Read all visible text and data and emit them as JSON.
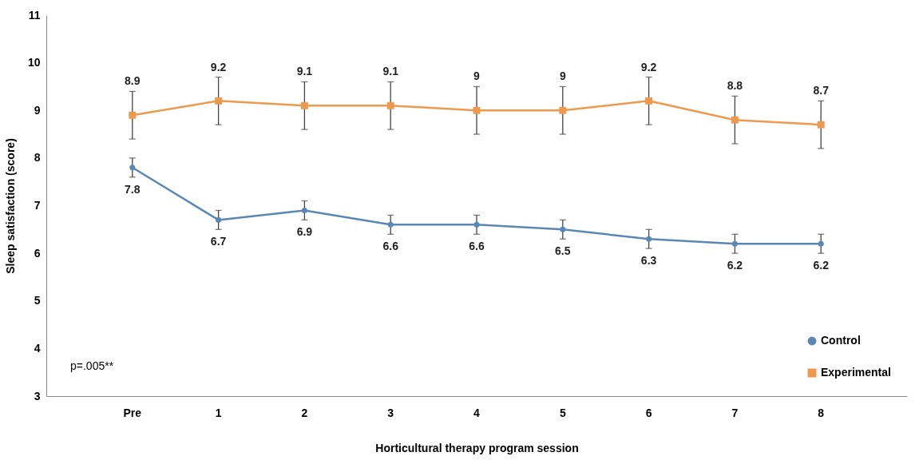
{
  "chart_data": {
    "type": "line",
    "categories": [
      "Pre",
      "1",
      "2",
      "3",
      "4",
      "5",
      "6",
      "7",
      "8"
    ],
    "series": [
      {
        "name": "Control",
        "color": "#5b87b5",
        "marker": "circle",
        "values": [
          7.8,
          6.7,
          6.9,
          6.6,
          6.6,
          6.5,
          6.3,
          6.2,
          6.2
        ],
        "errors": [
          0.2,
          0.2,
          0.2,
          0.2,
          0.2,
          0.2,
          0.2,
          0.2,
          0.2
        ]
      },
      {
        "name": "Experimental",
        "color": "#ed9a4f",
        "marker": "square",
        "values": [
          8.9,
          9.2,
          9.1,
          9.1,
          9,
          9,
          9.2,
          8.8,
          8.7
        ],
        "errors": [
          0.5,
          0.5,
          0.5,
          0.5,
          0.5,
          0.5,
          0.5,
          0.5,
          0.5
        ]
      }
    ],
    "xlabel": "Horticultural therapy program session",
    "ylabel": "Sleep satisfaction (score)",
    "ylim": [
      3,
      11
    ],
    "yticks": [
      3,
      4,
      5,
      6,
      7,
      8,
      9,
      10,
      11
    ],
    "data_labels": true,
    "legend": "bottom right",
    "annotations": [
      "p=.005**"
    ]
  }
}
